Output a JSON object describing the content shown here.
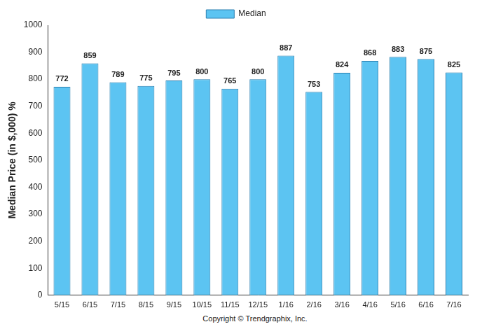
{
  "chart_data": {
    "type": "bar",
    "y_label": "Median Price (in $,000) %",
    "caption": "Copyright © Trendgraphix, Inc.",
    "categories": [
      "5/15",
      "6/15",
      "7/15",
      "8/15",
      "9/15",
      "10/15",
      "11/15",
      "12/15",
      "1/16",
      "2/16",
      "3/16",
      "4/16",
      "5/16",
      "6/16",
      "7/16"
    ],
    "series": [
      {
        "name": "Median",
        "color": "#5cc4f2",
        "values": [
          772,
          859,
          789,
          775,
          795,
          800,
          765,
          800,
          887,
          753,
          824,
          868,
          883,
          875,
          825
        ]
      }
    ],
    "ylim": [
      0,
      1000
    ],
    "yticks": [
      0,
      100,
      200,
      300,
      400,
      500,
      600,
      700,
      800,
      900,
      1000
    ],
    "grid": false,
    "legend": "top",
    "data_labels": true
  }
}
